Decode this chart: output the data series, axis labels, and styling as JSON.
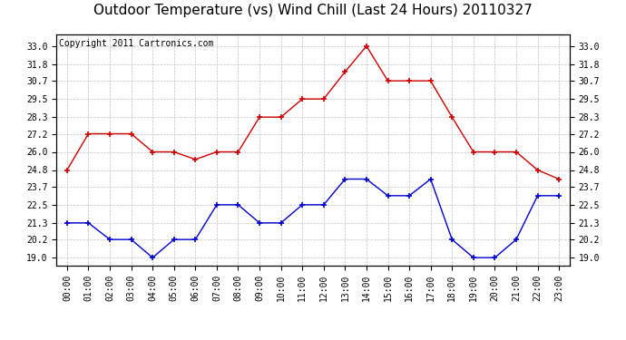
{
  "title": "Outdoor Temperature (vs) Wind Chill (Last 24 Hours) 20110327",
  "copyright_text": "Copyright 2011 Cartronics.com",
  "x_labels": [
    "00:00",
    "01:00",
    "02:00",
    "03:00",
    "04:00",
    "05:00",
    "06:00",
    "07:00",
    "08:00",
    "09:00",
    "10:00",
    "11:00",
    "12:00",
    "13:00",
    "14:00",
    "15:00",
    "16:00",
    "17:00",
    "18:00",
    "19:00",
    "20:00",
    "21:00",
    "22:00",
    "23:00"
  ],
  "red_data": [
    24.8,
    27.2,
    27.2,
    27.2,
    26.0,
    26.0,
    25.5,
    26.0,
    26.0,
    28.3,
    28.3,
    29.5,
    29.5,
    31.3,
    33.0,
    30.7,
    30.7,
    30.7,
    28.3,
    26.0,
    26.0,
    26.0,
    24.8,
    24.2
  ],
  "blue_data": [
    21.3,
    21.3,
    20.2,
    20.2,
    19.0,
    20.2,
    20.2,
    22.5,
    22.5,
    21.3,
    21.3,
    22.5,
    22.5,
    24.2,
    24.2,
    23.1,
    23.1,
    24.2,
    20.2,
    19.0,
    19.0,
    20.2,
    23.1,
    23.1
  ],
  "y_ticks": [
    19.0,
    20.2,
    21.3,
    22.5,
    23.7,
    24.8,
    26.0,
    27.2,
    28.3,
    29.5,
    30.7,
    31.8,
    33.0
  ],
  "ylim": [
    18.5,
    33.8
  ],
  "red_color": "#cc0000",
  "blue_color": "#0000cc",
  "grid_color": "#bbbbbb",
  "bg_color": "#ffffff",
  "plot_bg_color": "#ffffff",
  "title_fontsize": 11,
  "copyright_fontsize": 7,
  "tick_fontsize": 7,
  "x_tick_fontsize": 7
}
